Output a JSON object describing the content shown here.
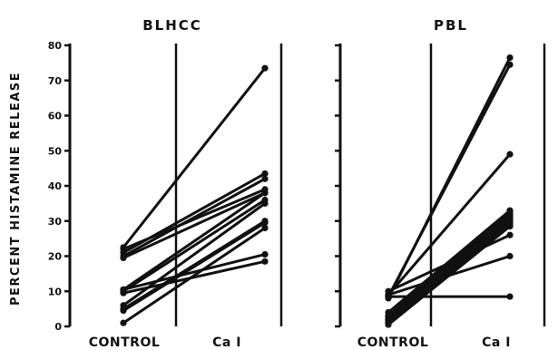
{
  "chart_data": {
    "type": "line",
    "ylabel": "PERCENT HISTAMINE RELEASE",
    "ylim": [
      0,
      80
    ],
    "yticks": [
      {
        "value": 0,
        "label": "0"
      },
      {
        "value": 10,
        "label": "10"
      },
      {
        "value": 20,
        "label": "20"
      },
      {
        "value": 30,
        "label": "30"
      },
      {
        "value": 40,
        "label": "40"
      },
      {
        "value": 50,
        "label": "50"
      },
      {
        "value": 60,
        "label": "60"
      },
      {
        "value": 70,
        "label": "70"
      },
      {
        "value": 80,
        "label": "80"
      }
    ],
    "categories": [
      "CONTROL",
      "Ca I"
    ],
    "panels": [
      {
        "title": "BLHCC",
        "pairs": [
          [
            22.5,
            73.5
          ],
          [
            21,
            43.5
          ],
          [
            20,
            42
          ],
          [
            22,
            39
          ],
          [
            19.5,
            38
          ],
          [
            10.5,
            38
          ],
          [
            10,
            36
          ],
          [
            6,
            35
          ],
          [
            5,
            30
          ],
          [
            4.5,
            29.5
          ],
          [
            1,
            28
          ],
          [
            10.5,
            20.5
          ],
          [
            9.5,
            18.5
          ]
        ]
      },
      {
        "title": "PBL",
        "pairs": [
          [
            8,
            76.5
          ],
          [
            8.5,
            74.5
          ],
          [
            9,
            49
          ],
          [
            4,
            33
          ],
          [
            3,
            32.5
          ],
          [
            2.5,
            32
          ],
          [
            2,
            31.5
          ],
          [
            1.5,
            31
          ],
          [
            3,
            30.5
          ],
          [
            1,
            30
          ],
          [
            2,
            29.5
          ],
          [
            1.5,
            29
          ],
          [
            0.5,
            28.5
          ],
          [
            10,
            26
          ],
          [
            9,
            20
          ],
          [
            8.5,
            8.5
          ]
        ]
      }
    ]
  }
}
